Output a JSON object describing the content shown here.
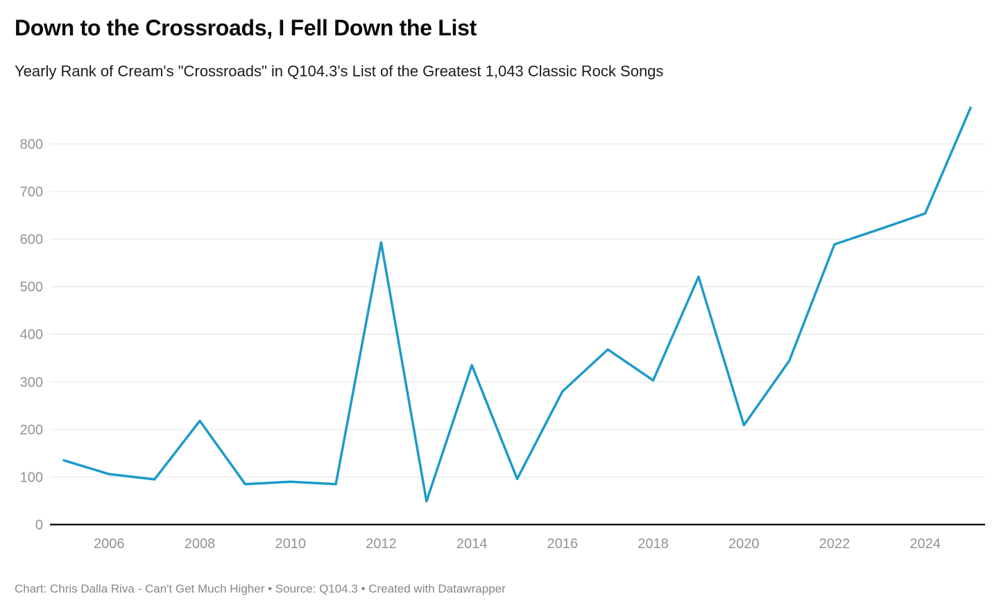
{
  "header": {
    "title": "Down to the Crossroads, I Fell Down the List",
    "subtitle": "Yearly Rank of Cream's \"Crossroads\" in Q104.3's List of the Greatest 1,043 Classic Rock Songs"
  },
  "chart_data": {
    "type": "line",
    "title": "Down to the Crossroads, I Fell Down the List",
    "subtitle": "Yearly Rank of Cream's \"Crossroads\" in Q104.3's List of the Greatest 1,043 Classic Rock Songs",
    "x": [
      2005,
      2006,
      2007,
      2008,
      2009,
      2010,
      2011,
      2012,
      2013,
      2014,
      2015,
      2016,
      2017,
      2018,
      2019,
      2020,
      2021,
      2022,
      2023,
      2024,
      2025
    ],
    "series": [
      {
        "name": "Yearly rank of Cream's Crossroads",
        "values": [
          135,
          106,
          95,
          218,
          85,
          90,
          85,
          593,
          49,
          335,
          96,
          280,
          368,
          303,
          521,
          209,
          344,
          589,
          621,
          654,
          876
        ]
      }
    ],
    "xlabel": "",
    "ylabel": "",
    "ylim": [
      0,
      900
    ],
    "y_ticks": [
      0,
      100,
      200,
      300,
      400,
      500,
      600,
      700,
      800
    ],
    "x_ticks": [
      2006,
      2008,
      2010,
      2012,
      2014,
      2016,
      2018,
      2020,
      2022,
      2024
    ],
    "grid": "horizontal",
    "legend": "none",
    "line_color": "#1e9ac9"
  },
  "colors": {
    "grid": "#e4e4e4",
    "axis_label": "#929292",
    "baseline": "#181818",
    "background": "#ffffff"
  },
  "footer": {
    "text": "Chart: Chris Dalla Riva - Can't Get Much Higher • Source: Q104.3 • Created with Datawrapper"
  }
}
